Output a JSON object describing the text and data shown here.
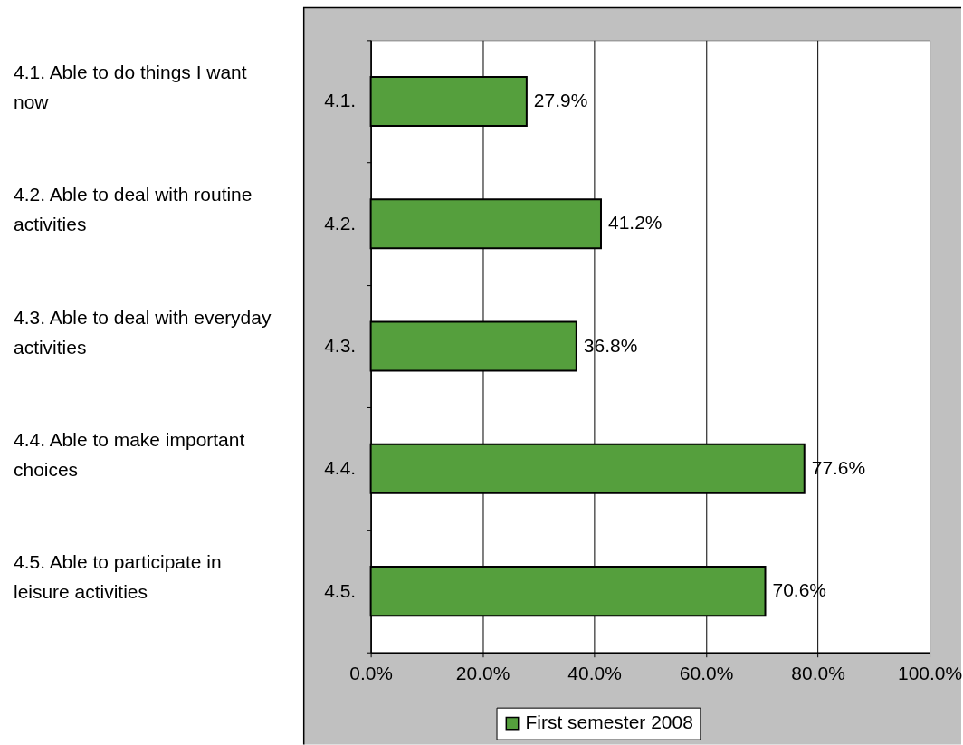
{
  "chart_data": {
    "type": "bar",
    "orientation": "horizontal",
    "categories": [
      "4.1.",
      "4.2.",
      "4.3.",
      "4.4.",
      "4.5."
    ],
    "series": [
      {
        "name": "First semester 2008",
        "color": "#559f3d",
        "values": [
          27.9,
          41.2,
          36.8,
          77.6,
          70.6
        ],
        "value_labels": [
          "27.9%",
          "41.2%",
          "36.8%",
          "77.6%",
          "70.6%"
        ]
      }
    ],
    "xlim": [
      0,
      100
    ],
    "xticks": [
      {
        "value": 0,
        "label": "0.0%"
      },
      {
        "value": 20,
        "label": "20.0%"
      },
      {
        "value": 40,
        "label": "40.0%"
      },
      {
        "value": 60,
        "label": "60.0%"
      },
      {
        "value": 80,
        "label": "80.0%"
      },
      {
        "value": 100,
        "label": "100.0%"
      }
    ],
    "grid": "x",
    "legend": "bottom",
    "annotations": [
      "4.1. Able to do things I want now",
      "4.2. Able to deal with routine activities",
      "4.3. Able to deal with everyday activities",
      "4.4. Able to make important choices",
      "4.5. Able to participate in leisure activities"
    ]
  }
}
